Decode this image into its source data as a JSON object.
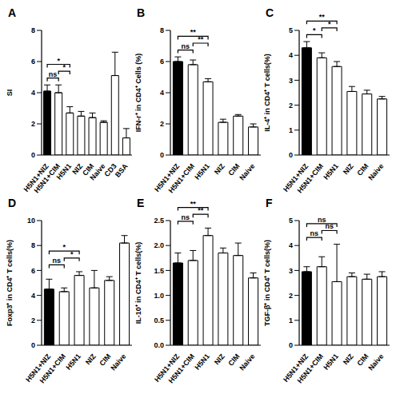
{
  "chart_data": [
    {
      "type": "bar",
      "title": "A",
      "y_label": "SI",
      "categories": [
        "H5N1+NIZ",
        "H5N1+CIM",
        "H5N1",
        "NIZ",
        "CIM",
        "Naive",
        "CD3",
        "BSA"
      ],
      "values": [
        4.1,
        4.0,
        2.7,
        2.5,
        2.4,
        2.1,
        5.1,
        1.1
      ],
      "errors": [
        0.4,
        0.5,
        0.4,
        0.3,
        0.3,
        0.1,
        1.5,
        0.6
      ],
      "colors": [
        "#000000",
        "#ffffff",
        "#ffffff",
        "#ffffff",
        "#ffffff",
        "#ffffff",
        "#ffffff",
        "#ffffff"
      ],
      "ylim": [
        0,
        8
      ],
      "yticks": [
        0,
        2,
        4,
        6,
        8
      ],
      "annotations": [
        {
          "from": "H5N1+NIZ",
          "to": "H5N1+CIM",
          "text": "ns"
        },
        {
          "from": "H5N1+NIZ",
          "to": "H5N1",
          "text": "*"
        },
        {
          "from": "H5N1+CIM",
          "to": "H5N1",
          "text": "*"
        }
      ]
    },
    {
      "type": "bar",
      "title": "B",
      "y_label": "IFN-r⁺ in CD4⁺ Cells (%)",
      "categories": [
        "H5N1+NIZ",
        "H5N1+CIM",
        "H5N1",
        "NIZ",
        "CIM",
        "Naive"
      ],
      "values": [
        6.0,
        5.8,
        4.7,
        2.1,
        2.5,
        1.8
      ],
      "errors": [
        0.3,
        0.3,
        0.2,
        0.2,
        0.1,
        0.2
      ],
      "colors": [
        "#000000",
        "#ffffff",
        "#ffffff",
        "#ffffff",
        "#ffffff",
        "#ffffff"
      ],
      "ylim": [
        0,
        8
      ],
      "yticks": [
        0,
        2,
        4,
        6,
        8
      ],
      "annotations": [
        {
          "from": "H5N1+NIZ",
          "to": "H5N1+CIM",
          "text": "ns"
        },
        {
          "from": "H5N1+NIZ",
          "to": "H5N1",
          "text": "**"
        },
        {
          "from": "H5N1+CIM",
          "to": "H5N1",
          "text": "**"
        }
      ]
    },
    {
      "type": "bar",
      "title": "C",
      "y_label": "IL-4⁺ in CD4⁺ T cells(%)",
      "categories": [
        "H5N1+NIZ",
        "H5N1+CIM",
        "H5N1",
        "NIZ",
        "CIM",
        "Naive"
      ],
      "values": [
        4.3,
        3.9,
        3.55,
        2.55,
        2.45,
        2.25
      ],
      "errors": [
        0.25,
        0.2,
        0.2,
        0.2,
        0.15,
        0.1
      ],
      "colors": [
        "#000000",
        "#ffffff",
        "#ffffff",
        "#ffffff",
        "#ffffff",
        "#ffffff"
      ],
      "ylim": [
        0,
        5
      ],
      "yticks": [
        0,
        1,
        2,
        3,
        4,
        5
      ],
      "annotations": [
        {
          "from": "H5N1+NIZ",
          "to": "H5N1+CIM",
          "text": "*"
        },
        {
          "from": "H5N1+NIZ",
          "to": "H5N1",
          "text": "**"
        },
        {
          "from": "H5N1+CIM",
          "to": "H5N1",
          "text": "*"
        }
      ]
    },
    {
      "type": "bar",
      "title": "D",
      "y_label": "Foxp3⁺ in CD4⁺ T cells(%)",
      "categories": [
        "H5N1+NIZ",
        "H5N1+CIM",
        "H5N1",
        "NIZ",
        "CIM",
        "Naive"
      ],
      "values": [
        4.5,
        4.3,
        5.6,
        4.6,
        5.2,
        8.2
      ],
      "errors": [
        0.8,
        0.3,
        0.3,
        1.4,
        0.3,
        0.6
      ],
      "colors": [
        "#000000",
        "#ffffff",
        "#ffffff",
        "#ffffff",
        "#ffffff",
        "#ffffff"
      ],
      "ylim": [
        0,
        10
      ],
      "yticks": [
        0,
        2,
        4,
        6,
        8,
        10
      ],
      "annotations": [
        {
          "from": "H5N1+NIZ",
          "to": "H5N1+CIM",
          "text": "ns"
        },
        {
          "from": "H5N1+NIZ",
          "to": "H5N1",
          "text": "*"
        },
        {
          "from": "H5N1+CIM",
          "to": "H5N1",
          "text": "*"
        }
      ]
    },
    {
      "type": "bar",
      "title": "E",
      "y_label": "IL-10⁺ in CD4⁺ T cells(%)",
      "categories": [
        "H5N1+NIZ",
        "H5N1+CIM",
        "H5N1",
        "NIZ",
        "CIM",
        "Naive"
      ],
      "values": [
        1.65,
        1.7,
        2.2,
        1.85,
        1.8,
        1.35
      ],
      "errors": [
        0.2,
        0.2,
        0.15,
        0.1,
        0.25,
        0.1
      ],
      "colors": [
        "#000000",
        "#ffffff",
        "#ffffff",
        "#ffffff",
        "#ffffff",
        "#ffffff"
      ],
      "ylim": [
        0,
        2.5
      ],
      "yticks": [
        {
          "value": 0,
          "label": "0.0"
        },
        0.5,
        {
          "value": 1,
          "label": "1.0"
        },
        1.5,
        {
          "value": 2,
          "label": "2.0"
        },
        2.5
      ],
      "annotations": [
        {
          "from": "H5N1+NIZ",
          "to": "H5N1+CIM",
          "text": "ns"
        },
        {
          "from": "H5N1+NIZ",
          "to": "H5N1",
          "text": "**"
        },
        {
          "from": "H5N1+CIM",
          "to": "H5N1",
          "text": "**"
        }
      ]
    },
    {
      "type": "bar",
      "title": "F",
      "y_label": "TGF-β⁺ in CD4⁺ T cells(%)",
      "categories": [
        "H5N1+NIZ",
        "H5N1+CIM",
        "H5N1",
        "NIZ",
        "CIM",
        "Naive"
      ],
      "values": [
        2.95,
        3.15,
        2.55,
        2.75,
        2.65,
        2.75
      ],
      "errors": [
        0.2,
        0.4,
        1.5,
        0.15,
        0.2,
        0.2
      ],
      "colors": [
        "#000000",
        "#ffffff",
        "#ffffff",
        "#ffffff",
        "#ffffff",
        "#ffffff"
      ],
      "ylim": [
        0,
        5
      ],
      "yticks": [
        0,
        1,
        2,
        3,
        4,
        5
      ],
      "annotations": [
        {
          "from": "H5N1+NIZ",
          "to": "H5N1+CIM",
          "text": "ns"
        },
        {
          "from": "H5N1+NIZ",
          "to": "H5N1",
          "text": "ns"
        },
        {
          "from": "H5N1+CIM",
          "to": "H5N1",
          "text": "ns"
        }
      ]
    }
  ]
}
